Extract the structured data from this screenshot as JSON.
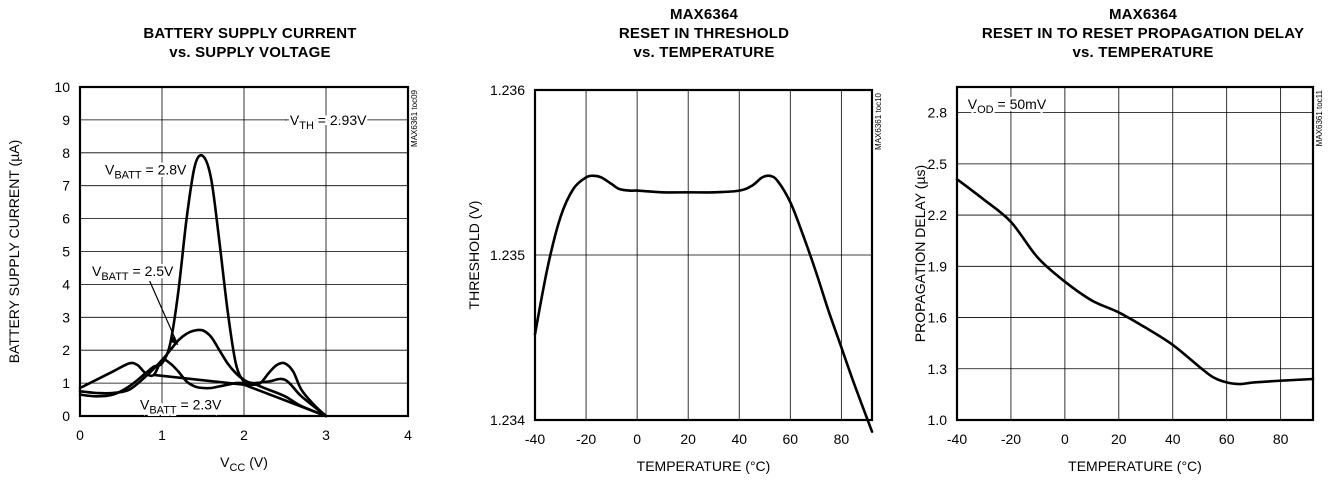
{
  "chart_data": [
    {
      "type": "line",
      "title_lines": [
        "BATTERY SUPPLY CURRENT",
        "vs. SUPPLY VOLTAGE"
      ],
      "xlabel": {
        "main": "V",
        "sub": "CC",
        "rest": " (V)"
      },
      "ylabel": "BATTERY SUPPLY CURRENT (µA)",
      "xlim": [
        0,
        4
      ],
      "ylim": [
        0,
        10
      ],
      "xticks": [
        0,
        1,
        2,
        3,
        4
      ],
      "yticks": [
        0,
        1,
        2,
        3,
        4,
        5,
        6,
        7,
        8,
        9,
        10
      ],
      "grid": true,
      "side_label": "MAX6361 toc09",
      "annotations": [
        {
          "main": "V",
          "sub": "TH",
          "rest": " = 2.93V"
        },
        {
          "main": "V",
          "sub": "BATT",
          "rest": " = 2.8V"
        },
        {
          "main": "V",
          "sub": "BATT",
          "rest": " = 2.5V"
        },
        {
          "main": "V",
          "sub": "BATT",
          "rest": " = 2.3V"
        }
      ],
      "series": [
        {
          "x": [
            0,
            0.2,
            0.4,
            0.6,
            0.8,
            0.9,
            1.0,
            1.1,
            1.2,
            1.3,
            1.4,
            1.5,
            1.6,
            1.7,
            1.8,
            1.9,
            2.0,
            2.1,
            2.2,
            2.3,
            2.5,
            2.7,
            3.0
          ],
          "y": [
            0.65,
            0.6,
            0.65,
            0.9,
            1.3,
            1.5,
            1.6,
            2.2,
            3.8,
            6.0,
            7.6,
            7.9,
            7.2,
            5.3,
            3.2,
            1.6,
            1.05,
            1.0,
            0.9,
            0.8,
            0.6,
            0.3,
            0
          ]
        },
        {
          "x": [
            0,
            0.2,
            0.4,
            0.6,
            0.8,
            1.0,
            1.1,
            1.2,
            1.3,
            1.4,
            1.5,
            1.6,
            1.7,
            1.8,
            1.9,
            2.0,
            2.1,
            2.3,
            2.5,
            2.7,
            3.0
          ],
          "y": [
            0.75,
            0.7,
            0.7,
            0.8,
            1.2,
            1.7,
            2.0,
            2.3,
            2.5,
            2.6,
            2.6,
            2.4,
            2.0,
            1.6,
            1.3,
            1.1,
            1.0,
            1.05,
            1.1,
            0.6,
            0
          ]
        },
        {
          "x": [
            0,
            0.2,
            0.4,
            0.6,
            0.7,
            0.8,
            0.9,
            1.0,
            1.1,
            1.2,
            1.3,
            1.4,
            1.5,
            1.6,
            1.7,
            1.8,
            1.9,
            2.0,
            2.1,
            2.2,
            2.3,
            2.4,
            2.5,
            2.6,
            2.7,
            2.85,
            3.0
          ],
          "y": [
            0.85,
            1.1,
            1.35,
            1.6,
            1.55,
            1.3,
            1.25,
            1.7,
            1.6,
            1.35,
            1.05,
            0.9,
            0.85,
            0.85,
            0.9,
            0.95,
            1.0,
            1.0,
            0.95,
            1.0,
            1.3,
            1.55,
            1.6,
            1.35,
            0.8,
            0.35,
            0
          ]
        },
        {
          "x": [
            0.9,
            2.0,
            3.0
          ],
          "y": [
            1.25,
            0.95,
            0
          ]
        }
      ]
    },
    {
      "type": "line",
      "title_lines": [
        "MAX6364",
        "RESET IN THRESHOLD",
        "vs. TEMPERATURE"
      ],
      "xlabel": "TEMPERATURE (°C)",
      "ylabel": "THRESHOLD (V)",
      "xlim": [
        -40,
        92
      ],
      "ylim": [
        1.234,
        1.236
      ],
      "xticks": [
        -40,
        -20,
        0,
        20,
        40,
        60,
        80
      ],
      "yticks": [
        1.234,
        1.235,
        1.236
      ],
      "ytick_labels": [
        "1.234",
        "1.235",
        "1.236"
      ],
      "grid": true,
      "side_label": "MAX6361 toc10",
      "series": [
        {
          "x": [
            -40,
            -35,
            -30,
            -25,
            -20,
            -17,
            -14,
            -10,
            -7,
            -3,
            0,
            10,
            20,
            30,
            40,
            45,
            49,
            52,
            55,
            60,
            65,
            70,
            75,
            80,
            85,
            92
          ],
          "y": [
            1.23452,
            1.23493,
            1.23523,
            1.2354,
            1.23547,
            1.23548,
            1.23547,
            1.23543,
            1.2354,
            1.23539,
            1.23539,
            1.23538,
            1.23538,
            1.23538,
            1.23539,
            1.23542,
            1.23547,
            1.23548,
            1.23545,
            1.23532,
            1.23512,
            1.2349,
            1.23466,
            1.23444,
            1.23422,
            1.23393
          ]
        }
      ]
    },
    {
      "type": "line",
      "title_lines": [
        "MAX6364",
        "RESET IN TO RESET PROPAGATION DELAY",
        "vs. TEMPERATURE"
      ],
      "xlabel": "TEMPERATURE (°C)",
      "ylabel": "PROPAGATION DELAY (µs)",
      "xlim": [
        -40,
        92
      ],
      "ylim": [
        1.0,
        2.95
      ],
      "xticks": [
        -40,
        -20,
        0,
        20,
        40,
        60,
        80
      ],
      "yticks": [
        1.0,
        1.3,
        1.6,
        1.9,
        2.2,
        2.5,
        2.8
      ],
      "ytick_labels": [
        "1.0",
        "1.3",
        "1.6",
        "1.9",
        "2.2",
        "2.5",
        "2.8"
      ],
      "grid": true,
      "side_label": "MAX6361 toc11",
      "annotations": [
        {
          "main": "V",
          "sub": "OD",
          "rest": " = 50mV"
        }
      ],
      "series": [
        {
          "x": [
            -40,
            -30,
            -20,
            -10,
            0,
            10,
            20,
            30,
            40,
            50,
            55,
            60,
            65,
            70,
            80,
            92
          ],
          "y": [
            2.41,
            2.29,
            2.16,
            1.95,
            1.81,
            1.7,
            1.63,
            1.54,
            1.44,
            1.31,
            1.25,
            1.22,
            1.21,
            1.22,
            1.23,
            1.24
          ]
        }
      ]
    }
  ]
}
